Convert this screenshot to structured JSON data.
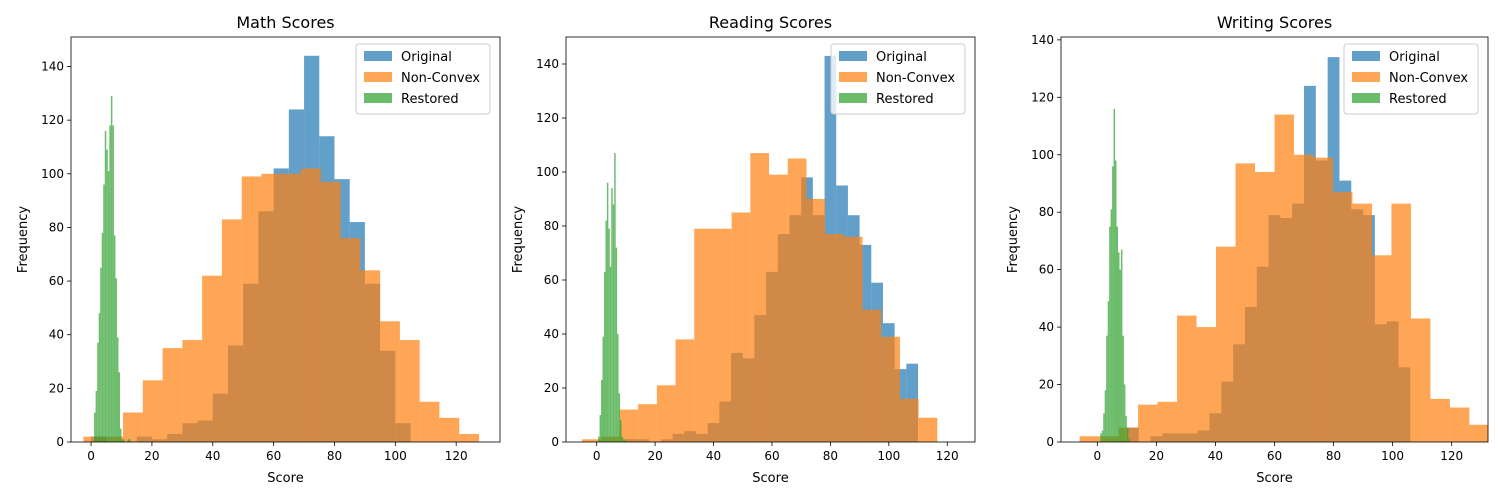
{
  "colors": {
    "original": "#1f77b4",
    "non_convex": "#ff7f0e",
    "restored": "#2ca02c"
  },
  "chart_data": [
    {
      "type": "histogram",
      "title": "Math Scores",
      "xlabel": "Score",
      "ylabel": "Frequency",
      "xlim": [
        -6.6,
        134.4
      ],
      "ylim": [
        0,
        151
      ],
      "xticks": [
        0,
        20,
        40,
        60,
        80,
        100,
        120
      ],
      "yticks": [
        0,
        20,
        40,
        60,
        80,
        100,
        120,
        140
      ],
      "legend": {
        "position": "upper-right",
        "entries": [
          "Original",
          "Non-Convex",
          "Restored"
        ]
      },
      "series": [
        {
          "name": "Original",
          "color_key": "original",
          "bin_start": 0,
          "bin_width": 5,
          "values": [
            2,
            0,
            0,
            2,
            1,
            3,
            7,
            8,
            18,
            36,
            59,
            86,
            102,
            124,
            144,
            114,
            98,
            82,
            59,
            34,
            7
          ]
        },
        {
          "name": "Non-Convex",
          "color_key": "non_convex",
          "bin_start": -2.5,
          "bin_width": 6.5,
          "values": [
            2,
            2,
            11,
            23,
            35,
            38,
            62,
            83,
            99,
            100,
            100,
            102,
            97,
            76,
            64,
            45,
            38,
            15,
            9,
            3
          ]
        },
        {
          "name": "Restored",
          "color_key": "restored",
          "bin_start": 1.0,
          "bin_width": 0.5,
          "values": [
            11,
            19,
            37,
            48,
            65,
            78,
            96,
            116,
            109,
            101,
            118,
            129,
            118,
            77,
            61,
            39,
            26,
            5,
            1,
            1,
            0,
            0,
            1,
            1
          ]
        }
      ]
    },
    {
      "type": "histogram",
      "title": "Reading Scores",
      "xlabel": "Score",
      "ylabel": "Frequency",
      "xlim": [
        -10.5,
        129.5
      ],
      "ylim": [
        0,
        150
      ],
      "xticks": [
        0,
        20,
        40,
        60,
        80,
        100,
        120
      ],
      "yticks": [
        0,
        20,
        40,
        60,
        80,
        100,
        120,
        140
      ],
      "legend": {
        "position": "upper-right",
        "entries": [
          "Original",
          "Non-Convex",
          "Restored"
        ]
      },
      "series": [
        {
          "name": "Original",
          "color_key": "original",
          "bin_start": 10,
          "bin_width": 4,
          "values": [
            1,
            1,
            0,
            1,
            3,
            4,
            3,
            7,
            15,
            33,
            31,
            47,
            63,
            77,
            84,
            98,
            84,
            143,
            95,
            84,
            73,
            59,
            44,
            27,
            29
          ]
        },
        {
          "name": "Non-Convex",
          "color_key": "non_convex",
          "bin_start": -5,
          "bin_width": 6.4,
          "values": [
            1,
            2,
            12,
            14,
            21,
            38,
            79,
            79,
            85,
            107,
            99,
            105,
            90,
            77,
            76,
            49,
            39,
            16,
            9
          ]
        },
        {
          "name": "Restored",
          "color_key": "restored",
          "bin_start": 0.5,
          "bin_width": 0.5,
          "values": [
            2,
            10,
            23,
            39,
            63,
            82,
            96,
            79,
            65,
            94,
            88,
            107,
            72,
            40,
            18,
            8,
            2,
            1,
            1
          ]
        }
      ]
    },
    {
      "type": "histogram",
      "title": "Writing Scores",
      "xlabel": "Score",
      "ylabel": "Frequency",
      "xlim": [
        -12.3,
        132.3
      ],
      "ylim": [
        0,
        141
      ],
      "xticks": [
        0,
        20,
        40,
        60,
        80,
        100,
        120
      ],
      "yticks": [
        0,
        20,
        40,
        60,
        80,
        100,
        120,
        140
      ],
      "legend": {
        "position": "upper-right",
        "entries": [
          "Original",
          "Non-Convex",
          "Restored"
        ]
      },
      "series": [
        {
          "name": "Original",
          "color_key": "original",
          "bin_start": 10,
          "bin_width": 4,
          "values": [
            5,
            0,
            2,
            3,
            3,
            3,
            4,
            10,
            21,
            34,
            47,
            61,
            79,
            78,
            83,
            124,
            98,
            134,
            91,
            81,
            79,
            41,
            42,
            26
          ]
        },
        {
          "name": "Non-Convex",
          "color_key": "non_convex",
          "bin_start": -6,
          "bin_width": 6.6,
          "values": [
            2,
            2,
            5,
            13,
            14,
            44,
            40,
            68,
            97,
            94,
            114,
            100,
            99,
            87,
            83,
            65,
            83,
            43,
            15,
            12,
            6
          ]
        },
        {
          "name": "Restored",
          "color_key": "restored",
          "bin_start": 1.0,
          "bin_width": 0.5,
          "values": [
            3,
            4,
            10,
            18,
            37,
            49,
            75,
            81,
            96,
            116,
            98,
            75,
            66,
            60,
            67,
            37,
            20,
            9,
            5,
            1
          ]
        }
      ]
    }
  ]
}
